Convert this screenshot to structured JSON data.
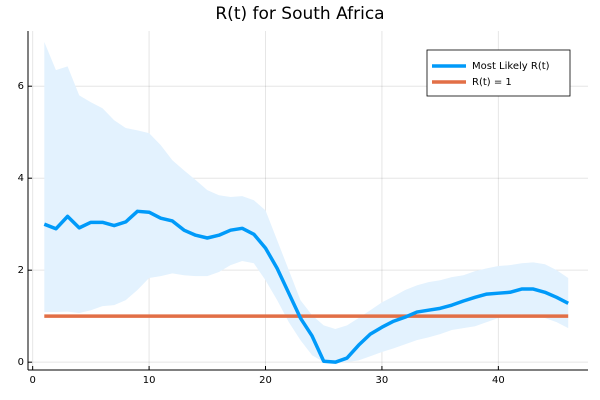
{
  "chart_data": {
    "type": "line",
    "title": "R(t) for South Africa",
    "x": [
      1,
      2,
      3,
      4,
      5,
      6,
      7,
      8,
      9,
      10,
      11,
      12,
      13,
      14,
      15,
      16,
      17,
      18,
      19,
      20,
      21,
      22,
      23,
      24,
      25,
      26,
      27,
      28,
      29,
      30,
      31,
      32,
      33,
      34,
      35,
      36,
      37,
      38,
      39,
      40,
      41,
      42,
      43,
      44,
      45,
      46
    ],
    "series": [
      {
        "name": "Most Likely R(t)",
        "color": "#009af9",
        "values": [
          3.0,
          2.9,
          3.17,
          2.92,
          3.04,
          3.04,
          2.97,
          3.05,
          3.28,
          3.26,
          3.13,
          3.07,
          2.87,
          2.76,
          2.7,
          2.76,
          2.87,
          2.91,
          2.78,
          2.48,
          2.04,
          1.5,
          0.96,
          0.57,
          0.02,
          0.0,
          0.09,
          0.37,
          0.61,
          0.76,
          0.89,
          0.98,
          1.09,
          1.13,
          1.17,
          1.24,
          1.33,
          1.41,
          1.48,
          1.5,
          1.52,
          1.59,
          1.59,
          1.52,
          1.41,
          1.28
        ]
      },
      {
        "name": "R(t) = 1",
        "color": "#e26f46",
        "values": [
          1,
          1,
          1,
          1,
          1,
          1,
          1,
          1,
          1,
          1,
          1,
          1,
          1,
          1,
          1,
          1,
          1,
          1,
          1,
          1,
          1,
          1,
          1,
          1,
          1,
          1,
          1,
          1,
          1,
          1,
          1,
          1,
          1,
          1,
          1,
          1,
          1,
          1,
          1,
          1,
          1,
          1,
          1,
          1,
          1,
          1
        ]
      }
    ],
    "band": {
      "color": "#e3f2fe",
      "upper": [
        6.96,
        6.35,
        6.43,
        5.8,
        5.65,
        5.52,
        5.26,
        5.09,
        5.04,
        4.98,
        4.72,
        4.39,
        4.17,
        3.96,
        3.74,
        3.63,
        3.59,
        3.61,
        3.52,
        3.3,
        2.65,
        2.0,
        1.35,
        1.02,
        0.8,
        0.72,
        0.8,
        0.96,
        1.13,
        1.3,
        1.43,
        1.57,
        1.67,
        1.74,
        1.78,
        1.85,
        1.89,
        1.98,
        2.04,
        2.09,
        2.11,
        2.15,
        2.17,
        2.13,
        2.0,
        1.83
      ],
      "lower": [
        1.09,
        1.09,
        1.1,
        1.07,
        1.13,
        1.22,
        1.24,
        1.35,
        1.57,
        1.83,
        1.87,
        1.93,
        1.89,
        1.87,
        1.87,
        1.96,
        2.11,
        2.2,
        2.15,
        1.78,
        1.35,
        0.87,
        0.48,
        0.15,
        0,
        0,
        0,
        0.04,
        0.13,
        0.22,
        0.3,
        0.39,
        0.48,
        0.54,
        0.61,
        0.7,
        0.74,
        0.78,
        0.87,
        0.96,
        1.0,
        1.04,
        1.0,
        0.96,
        0.87,
        0.74
      ]
    },
    "xlim": [
      -0.4,
      47.7
    ],
    "xticks": [
      0,
      10,
      20,
      30,
      40
    ],
    "ylim": [
      -0.17,
      7.2
    ],
    "yticks": [
      0,
      2,
      4,
      6
    ],
    "grid": true,
    "legend": "top-right"
  }
}
